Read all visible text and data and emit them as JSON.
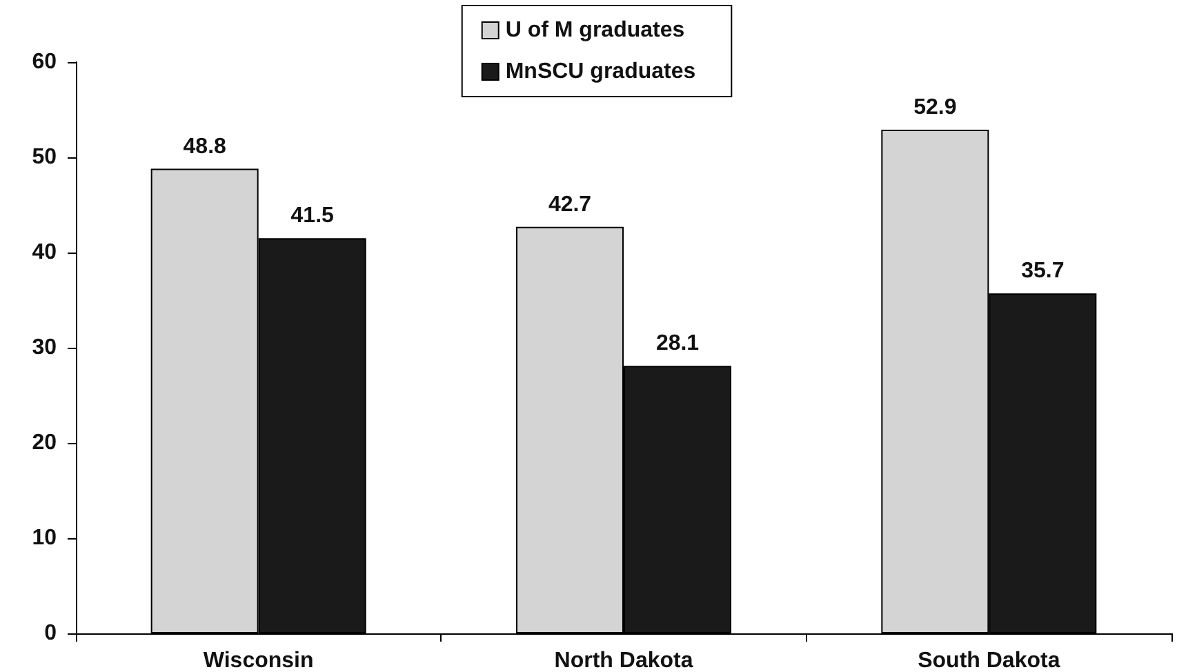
{
  "chart_data": {
    "type": "bar",
    "categories": [
      "Wisconsin",
      "North Dakota",
      "South Dakota"
    ],
    "series": [
      {
        "name": "U of M graduates",
        "color": "#d4d4d4",
        "values": [
          48.8,
          42.7,
          52.9
        ]
      },
      {
        "name": "MnSCU graduates",
        "color": "#1a1a1a",
        "values": [
          41.5,
          28.1,
          35.7
        ]
      }
    ],
    "ylim": [
      0,
      60
    ],
    "yticks": [
      0,
      10,
      20,
      30,
      40,
      50,
      60
    ],
    "grid": false,
    "legend": "top",
    "data_labels": true
  }
}
